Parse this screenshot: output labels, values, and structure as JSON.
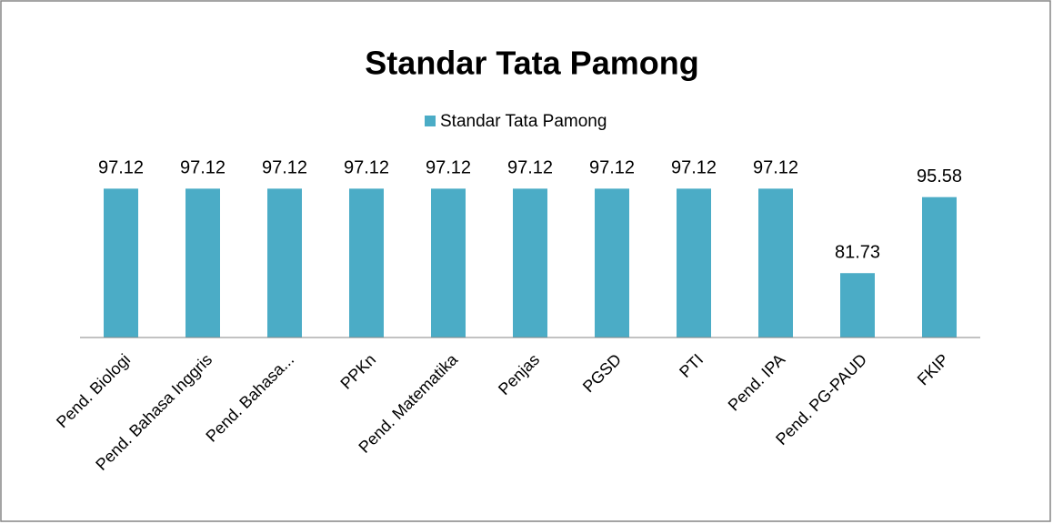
{
  "chart_data": {
    "type": "bar",
    "title": "Standar Tata Pamong",
    "categories": [
      "Pend. Biologi",
      "Pend. Bahasa Inggris",
      "Pend. Bahasa...",
      "PPKn",
      "Pend. Matematika",
      "Penjas",
      "PGSD",
      "PTI",
      "Pend. IPA",
      "Pend. PG-PAUD",
      "FKIP"
    ],
    "series": [
      {
        "name": "Standar Tata Pamong",
        "color": "#4bacc6",
        "values": [
          97.12,
          97.12,
          97.12,
          97.12,
          97.12,
          97.12,
          97.12,
          97.12,
          97.12,
          81.73,
          95.58
        ]
      }
    ],
    "ylim": [
      70,
      100
    ],
    "legend": "top",
    "data_labels": true
  }
}
